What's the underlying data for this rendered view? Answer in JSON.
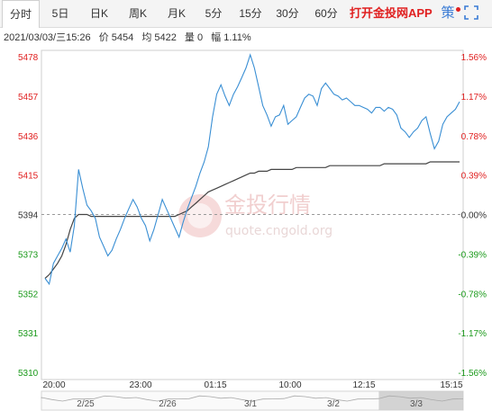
{
  "tabs": [
    {
      "label": "分时",
      "active": true
    },
    {
      "label": "5日"
    },
    {
      "label": "日K"
    },
    {
      "label": "周K"
    },
    {
      "label": "月K"
    },
    {
      "label": "5分"
    },
    {
      "label": "15分"
    },
    {
      "label": "30分"
    },
    {
      "label": "60分"
    }
  ],
  "promo": "打开金投网APP",
  "toolbar_icons": [
    "strategy-icon",
    "fullscreen-icon"
  ],
  "toolbar_glyph_strategy": "策",
  "info": {
    "datetime": "2021/03/03/三15:26",
    "price_label": "价",
    "price": "5454",
    "avg_label": "均",
    "avg": "5422",
    "vol_label": "量",
    "vol": "0",
    "amp_label": "幅",
    "amp": "1.11%"
  },
  "watermark": {
    "cn": "金投行情",
    "url": "quote.cngold.org"
  },
  "colors": {
    "up": "#e02020",
    "down": "#1a9a1a",
    "price_line": "#3a8fd4",
    "avg_line": "#444444",
    "base": "#333333"
  },
  "chart_data": {
    "type": "line",
    "y_left_labels": [
      "5478",
      "5457",
      "5436",
      "5415",
      "5394",
      "5373",
      "5352",
      "5331",
      "5310"
    ],
    "y_right_labels": [
      "1.56%",
      "1.17%",
      "0.78%",
      "0.39%",
      "0.00%",
      "-0.39%",
      "-0.78%",
      "-1.17%",
      "-1.56%"
    ],
    "ylim": [
      5310,
      5478
    ],
    "base": 5394,
    "x_labels": [
      "20:00",
      "23:00",
      "01:15",
      "10:00",
      "12:15",
      "15:15"
    ],
    "n_points": 100,
    "price": [
      5360,
      5357,
      5368,
      5372,
      5376,
      5381,
      5374,
      5388,
      5418,
      5408,
      5399,
      5396,
      5392,
      5382,
      5377,
      5372,
      5375,
      5381,
      5386,
      5392,
      5397,
      5402,
      5398,
      5392,
      5388,
      5380,
      5386,
      5394,
      5402,
      5397,
      5392,
      5387,
      5382,
      5390,
      5397,
      5403,
      5409,
      5416,
      5422,
      5430,
      5446,
      5458,
      5463,
      5457,
      5452,
      5458,
      5462,
      5467,
      5472,
      5479,
      5472,
      5462,
      5452,
      5447,
      5441,
      5446,
      5447,
      5452,
      5442,
      5444,
      5446,
      5451,
      5456,
      5458,
      5457,
      5452,
      5461,
      5464,
      5461,
      5458,
      5457,
      5455,
      5456,
      5454,
      5452,
      5452,
      5451,
      5450,
      5448,
      5451,
      5451,
      5449,
      5451,
      5450,
      5447,
      5440,
      5438,
      5435,
      5438,
      5440,
      5444,
      5446,
      5437,
      5429,
      5433,
      5442,
      5446,
      5448,
      5450,
      5454
    ],
    "avg": [
      5360,
      5362,
      5365,
      5368,
      5372,
      5378,
      5386,
      5392,
      5394,
      5394,
      5394,
      5393,
      5393,
      5393,
      5393,
      5393,
      5393,
      5393,
      5393,
      5393,
      5393,
      5393,
      5393,
      5393,
      5393,
      5393,
      5393,
      5393,
      5393,
      5393,
      5393,
      5393,
      5394,
      5395,
      5396,
      5398,
      5400,
      5402,
      5404,
      5406,
      5407,
      5408,
      5409,
      5410,
      5411,
      5412,
      5413,
      5414,
      5415,
      5416,
      5416,
      5417,
      5417,
      5417,
      5418,
      5418,
      5418,
      5418,
      5418,
      5418,
      5419,
      5419,
      5419,
      5419,
      5419,
      5419,
      5419,
      5419,
      5420,
      5420,
      5420,
      5420,
      5420,
      5420,
      5420,
      5420,
      5420,
      5420,
      5420,
      5420,
      5420,
      5421,
      5421,
      5421,
      5421,
      5421,
      5421,
      5421,
      5421,
      5421,
      5421,
      5421,
      5422,
      5422,
      5422,
      5422,
      5422,
      5422,
      5422,
      5422
    ]
  },
  "navigator": {
    "labels": [
      "2/25",
      "2/26",
      "3/1",
      "3/2",
      "3/3"
    ],
    "window_start": 0.8,
    "window_end": 1.0
  }
}
